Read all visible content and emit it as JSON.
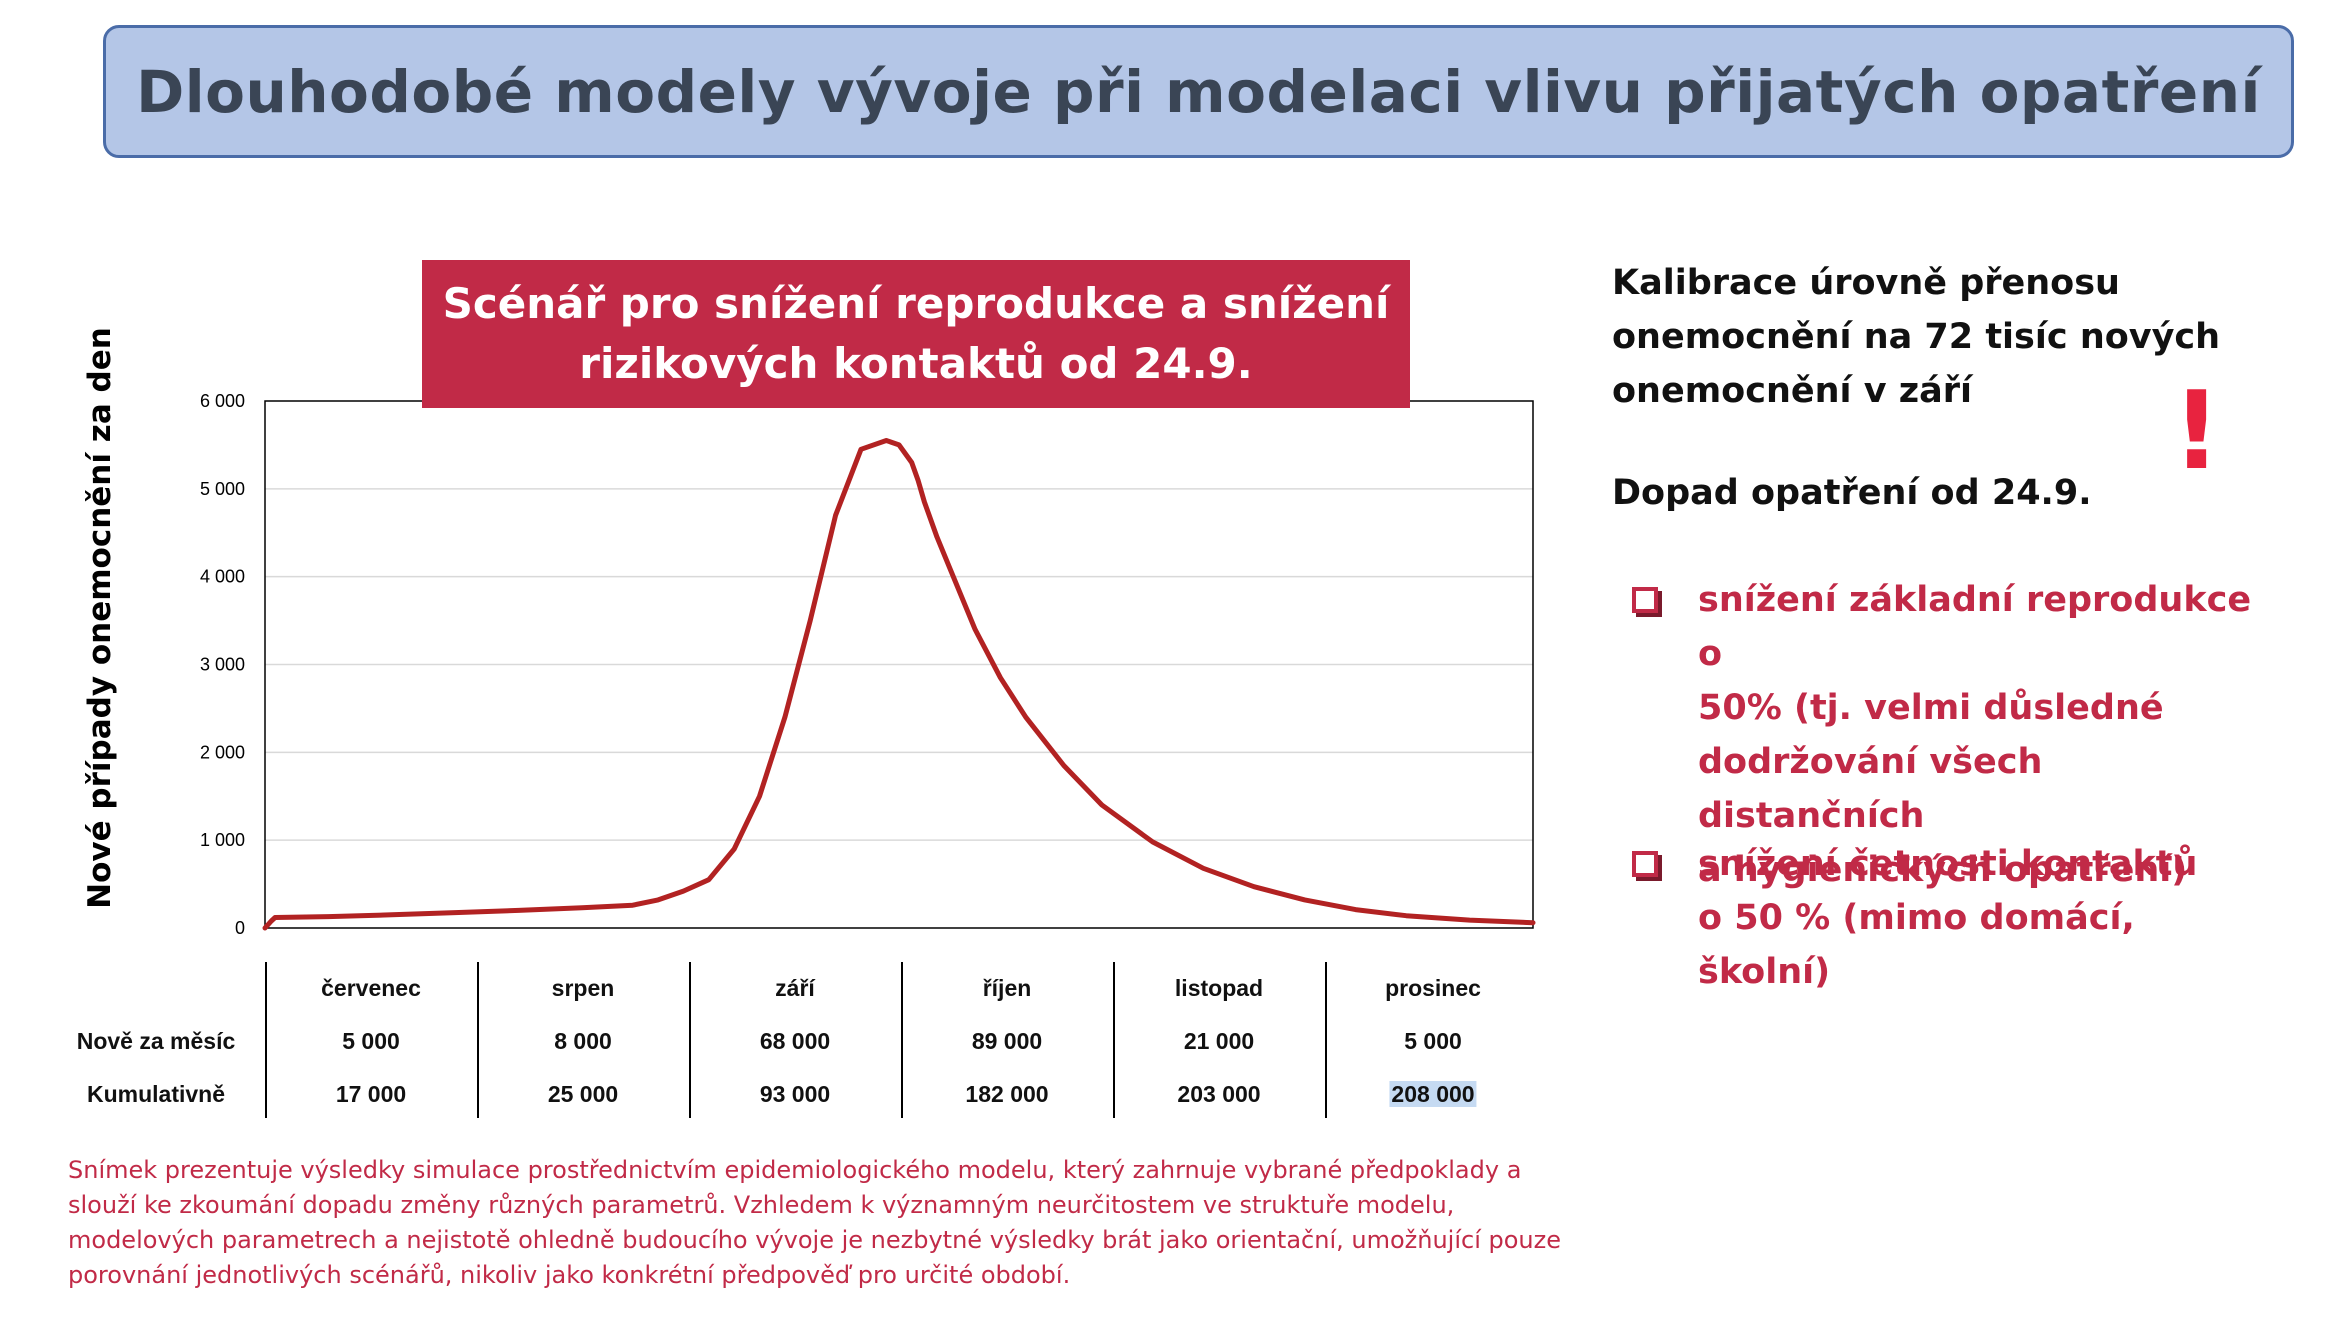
{
  "title": "Dlouhodobé modely vývoje při modelaci vlivu přijatých opatření",
  "scenario_title": "Scénář pro snížení reprodukce a snížení\nrizikových kontaktů od 24.9.",
  "right_panel": {
    "calibration": "Kalibrace úrovně přenosu\nonemocnění na 72 tisíc nových\nonemocnění v září",
    "impact": "Dopad opatření od 24.9.",
    "exclamation": "!",
    "bullets": [
      "snížení základní reprodukce o\n50% (tj. velmi důsledné\ndodržování všech distančních\na hygienických opatření)",
      "snížení četnosti kontaktů\no 50 % (mimo domácí, školní)"
    ],
    "accent_color": "#c12a47"
  },
  "table": {
    "row_labels": [
      "Nově za měsíc",
      "Kumulativně"
    ],
    "months": [
      "červenec",
      "srpen",
      "září",
      "říjen",
      "listopad",
      "prosinec"
    ],
    "monthly": [
      "5 000",
      "8 000",
      "68 000",
      "89 000",
      "21 000",
      "5 000"
    ],
    "cumulative": [
      "17 000",
      "25 000",
      "93 000",
      "182 000",
      "203 000",
      "208 000"
    ]
  },
  "disclaimer": "Snímek prezentuje výsledky simulace prostřednictvím epidemiologického modelu, který zahrnuje vybrané předpoklady a slouží ke zkoumání dopadu změny různých parametrů. Vzhledem k významným neurčitostem ve struktuře modelu, modelových parametrech a nejistotě ohledně budoucího vývoje je nezbytné výsledky brát jako orientační, umožňující pouze porovnání jednotlivých scénářů, nikoliv jako konkrétní předpověď pro určité období.",
  "chart_data": {
    "type": "line",
    "ylabel": "Nové případy onemocnění za den",
    "ylim": [
      0,
      6000
    ],
    "yticks": [
      0,
      1000,
      2000,
      3000,
      4000,
      5000,
      6000
    ],
    "ytick_labels": [
      "0",
      "1 000",
      "2 000",
      "3 000",
      "4 000",
      "5 000",
      "6 000"
    ],
    "grid": true,
    "line_color": "#b22222",
    "x_range": [
      0,
      1
    ],
    "series": [
      {
        "x": [
          0,
          0.005,
          0.008,
          0.05,
          0.1,
          0.15,
          0.2,
          0.25,
          0.29,
          0.31,
          0.33,
          0.35,
          0.37,
          0.39,
          0.41,
          0.43,
          0.45,
          0.47,
          0.49,
          0.5,
          0.51,
          0.515,
          0.52,
          0.53,
          0.54,
          0.56,
          0.58,
          0.6,
          0.63,
          0.66,
          0.7,
          0.74,
          0.78,
          0.82,
          0.86,
          0.9,
          0.95,
          1.0
        ],
        "y": [
          0,
          80,
          120,
          130,
          150,
          175,
          200,
          230,
          260,
          320,
          420,
          550,
          900,
          1500,
          2400,
          3500,
          4700,
          5450,
          5550,
          5500,
          5300,
          5100,
          4850,
          4450,
          4100,
          3400,
          2850,
          2400,
          1850,
          1400,
          980,
          680,
          470,
          320,
          210,
          140,
          90,
          60
        ]
      }
    ]
  }
}
